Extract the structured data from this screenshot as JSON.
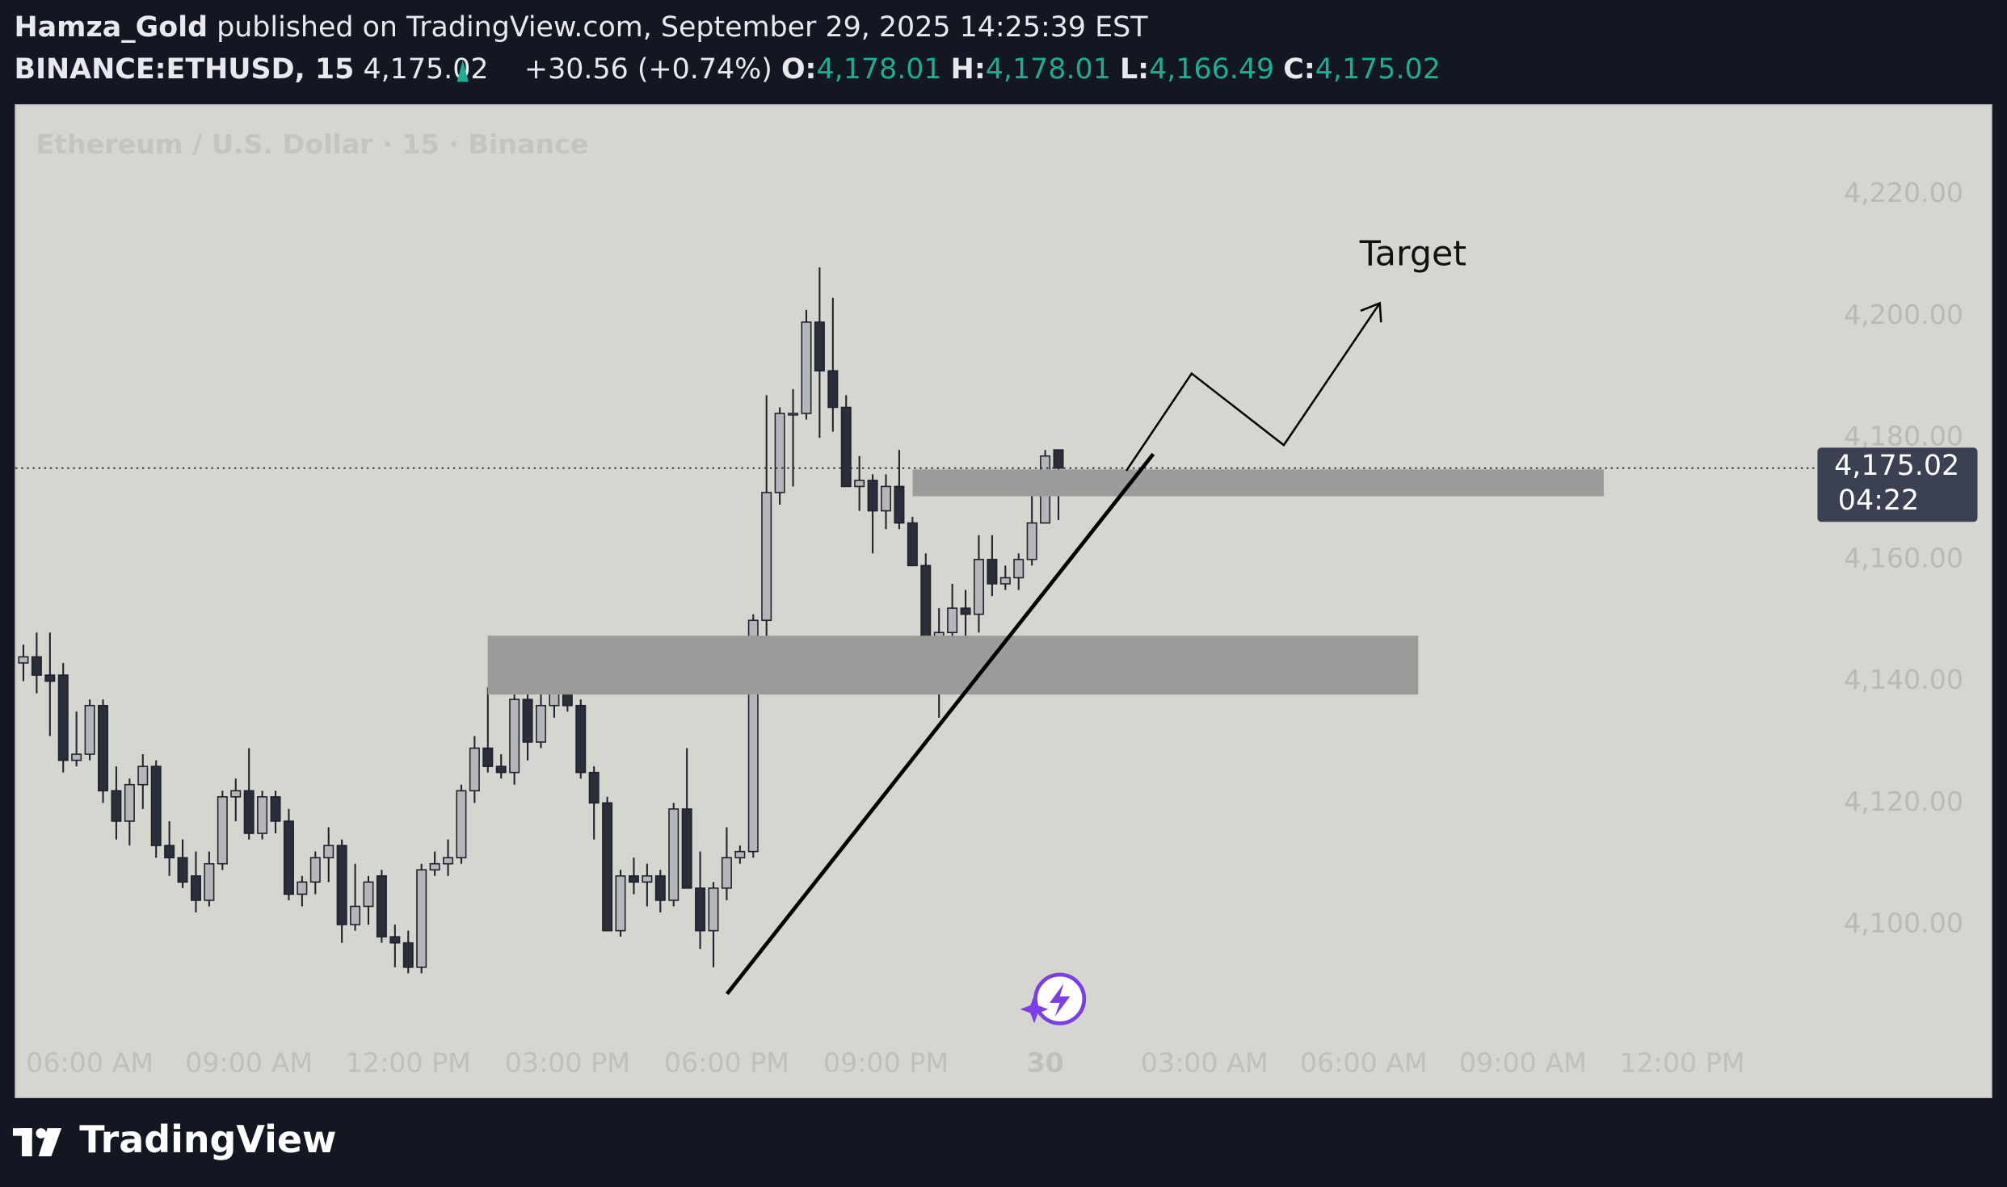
{
  "header": {
    "author": "Hamza_Gold",
    "published": "published on TradingView.com, September 29, 2025 14:25:39 EST",
    "symbol": "BINANCE:ETHUSD, 15",
    "last": "4,175.02",
    "change": "+30.56 (+0.74%)",
    "o_label": "O:",
    "o": "4,178.01",
    "h_label": "H:",
    "h": "4,178.01",
    "l_label": "L:",
    "l": "4,166.49",
    "c_label": "C:",
    "c": "4,175.02"
  },
  "footer": {
    "brand": "TradingView"
  },
  "chart_data": {
    "type": "candlestick",
    "title": "Ethereum / U.S. Dollar · 15 · Binance",
    "open": [
      4143,
      4144,
      4141,
      4141,
      4127,
      4128,
      4136,
      4122,
      4117,
      4123,
      4126,
      4113,
      4111,
      4108,
      4104,
      4110,
      4121,
      4122,
      4115,
      4121,
      4117,
      4105,
      4107,
      4111,
      4113,
      4100,
      4103,
      4108,
      4098,
      4097,
      4093,
      4109,
      4110,
      4111,
      4122,
      4129,
      4126,
      4125,
      4137,
      4130,
      4136,
      4138,
      4136,
      4125,
      4120,
      4099,
      4108,
      4107,
      4108,
      4104,
      4119,
      4106,
      4099,
      4106,
      4111,
      4112,
      4150,
      4171,
      4184,
      4184,
      4199,
      4191,
      4185,
      4172,
      4173,
      4168,
      4172,
      4166,
      4159,
      4147,
      4148,
      4152,
      4151,
      4160,
      4156,
      4157,
      4160,
      4166,
      4178.01
    ],
    "high": [
      4146,
      4148,
      4148,
      4143,
      4135,
      4137,
      4137,
      4126,
      4124,
      4128,
      4127,
      4117,
      4114,
      4112,
      4112,
      4122,
      4124,
      4129,
      4122,
      4122,
      4119,
      4108,
      4112,
      4116,
      4114,
      4110,
      4108,
      4109,
      4100,
      4099,
      4110,
      4112,
      4114,
      4123,
      4131,
      4139,
      4128,
      4138,
      4141,
      4138,
      4139,
      4139,
      4137,
      4126,
      4121,
      4109,
      4111,
      4110,
      4109,
      4120,
      4129,
      4112,
      4107,
      4116,
      4113,
      4151,
      4187,
      4185,
      4188,
      4201,
      4208,
      4203,
      4187,
      4177,
      4174,
      4174,
      4178,
      4167,
      4161,
      4152,
      4156,
      4155,
      4164,
      4164,
      4159,
      4161,
      4171,
      4178,
      4178.01
    ],
    "low": [
      4140,
      4138,
      4131,
      4125,
      4126,
      4127,
      4120,
      4114,
      4113,
      4119,
      4111,
      4108,
      4106,
      4102,
      4103,
      4109,
      4117,
      4114,
      4114,
      4115,
      4104,
      4103,
      4105,
      4107,
      4097,
      4099,
      4100,
      4097,
      4093,
      4092,
      4092,
      4108,
      4108,
      4110,
      4120,
      4125,
      4124,
      4123,
      4127,
      4129,
      4134,
      4135,
      4124,
      4114,
      4099,
      4098,
      4105,
      4103,
      4102,
      4103,
      4106,
      4096,
      4093,
      4104,
      4110,
      4111,
      4146,
      4169,
      4172,
      4183,
      4180,
      4181,
      4172,
      4168,
      4161,
      4165,
      4165,
      4159,
      4146,
      4134,
      4146,
      4147,
      4148,
      4154,
      4155,
      4155,
      4159,
      4166,
      4166.49
    ],
    "close": [
      4144,
      4141,
      4140,
      4127,
      4128,
      4136,
      4122,
      4117,
      4123,
      4126,
      4113,
      4111,
      4107,
      4104,
      4110,
      4121,
      4122,
      4115,
      4121,
      4117,
      4105,
      4107,
      4111,
      4113,
      4100,
      4103,
      4107,
      4098,
      4097,
      4093,
      4109,
      4110,
      4111,
      4122,
      4129,
      4126,
      4125,
      4137,
      4130,
      4136,
      4138,
      4136,
      4125,
      4120,
      4099,
      4108,
      4107,
      4108,
      4104,
      4119,
      4106,
      4099,
      4106,
      4111,
      4112,
      4150,
      4171,
      4184,
      4184,
      4199,
      4191,
      4185,
      4172,
      4173,
      4168,
      4172,
      4166,
      4159,
      4147,
      4148,
      4152,
      4151,
      4160,
      4156,
      4157,
      4160,
      4166,
      4177,
      4175.02
    ],
    "up_color": "#b4b6b9",
    "down_color": "#2a2e39",
    "wick_color": "#1e222d",
    "ylim": [
      4071.6,
      4234.7
    ],
    "yticks": [
      {
        "value": 4100,
        "label": "4,100.00"
      },
      {
        "value": 4120,
        "label": "4,120.00"
      },
      {
        "value": 4140,
        "label": "4,140.00"
      },
      {
        "value": 4160,
        "label": "4,160.00"
      },
      {
        "value": 4180,
        "label": "4,180.00"
      },
      {
        "value": 4200,
        "label": "4,200.00"
      },
      {
        "value": 4220,
        "label": "4,220.00"
      }
    ],
    "xlim": [
      -0.6,
      135.2
    ],
    "xticks": [
      {
        "value": 5,
        "label": "06:00 AM"
      },
      {
        "value": 17,
        "label": "09:00 AM"
      },
      {
        "value": 29,
        "label": "12:00 PM"
      },
      {
        "value": 41,
        "label": "03:00 PM"
      },
      {
        "value": 53,
        "label": "06:00 PM"
      },
      {
        "value": 65,
        "label": "09:00 PM"
      },
      {
        "value": 77,
        "label": "30"
      },
      {
        "value": 89,
        "label": "03:00 AM"
      },
      {
        "value": 101,
        "label": "06:00 AM"
      },
      {
        "value": 113,
        "label": "09:00 AM"
      },
      {
        "value": 125,
        "label": "12:00 PM"
      }
    ],
    "last_price": {
      "value": 4175.02,
      "label": "4,175.02"
    },
    "countdown": "04:22",
    "annotation": "Target"
  }
}
